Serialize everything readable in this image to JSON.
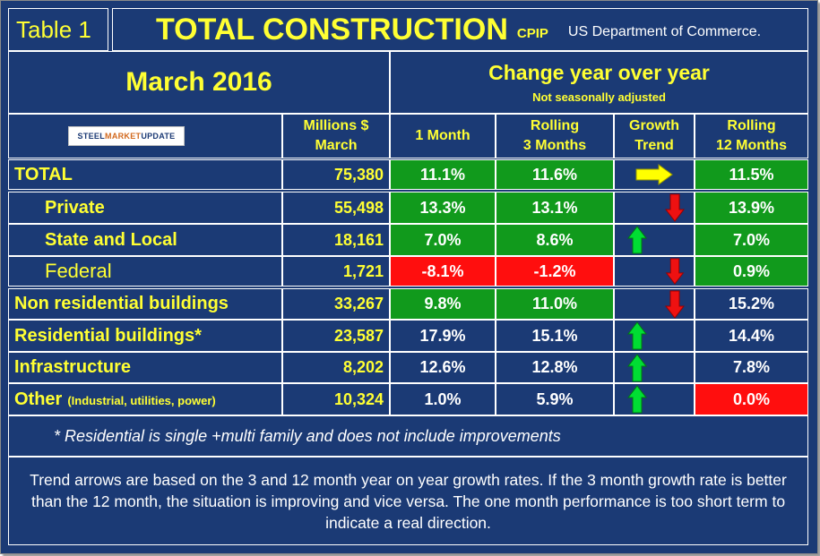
{
  "header": {
    "table_label": "Table 1",
    "title": "TOTAL CONSTRUCTION",
    "title_suffix": "CPIP",
    "source": "US Department of Commerce."
  },
  "subheader": {
    "period": "March 2016",
    "change_title": "Change year over year",
    "change_subtitle": "Not seasonally adjusted"
  },
  "logo_text": {
    "part1": "STEEL ",
    "part2": "MARKET",
    "part3": " UPDATE"
  },
  "columns": {
    "millions": "Millions $",
    "millions_sub": "March",
    "one_month": "1 Month",
    "rolling3": "Rolling",
    "rolling3_sub": "3 Months",
    "growth": "Growth",
    "growth_sub": "Trend",
    "rolling12": "Rolling",
    "rolling12_sub": "12 Months"
  },
  "rows": [
    {
      "label": "TOTAL",
      "millions": "75,380",
      "one_month": "11.1%",
      "rolling3": "11.6%",
      "trend": "right",
      "rolling12": "11.5%"
    },
    {
      "label": "Private",
      "millions": "55,498",
      "one_month": "13.3%",
      "rolling3": "13.1%",
      "trend": "down",
      "rolling12": "13.9%"
    },
    {
      "label": "State and Local",
      "millions": "18,161",
      "one_month": "7.0%",
      "rolling3": "8.6%",
      "trend": "up",
      "rolling12": "7.0%"
    },
    {
      "label": "Federal",
      "millions": "1,721",
      "one_month": "-8.1%",
      "rolling3": "-1.2%",
      "trend": "down",
      "rolling12": "0.9%"
    },
    {
      "label": "Non residential buildings",
      "millions": "33,267",
      "one_month": "9.8%",
      "rolling3": "11.0%",
      "trend": "down",
      "rolling12": "15.2%"
    },
    {
      "label": "Residential buildings*",
      "millions": "23,587",
      "one_month": "17.9%",
      "rolling3": "15.1%",
      "trend": "up",
      "rolling12": "14.4%"
    },
    {
      "label": "Infrastructure",
      "millions": "8,202",
      "one_month": "12.6%",
      "rolling3": "12.8%",
      "trend": "up",
      "rolling12": "7.8%"
    },
    {
      "label": "Other",
      "label_note": "(Industrial, utilities, power)",
      "millions": "10,324",
      "one_month": "1.0%",
      "rolling3": "5.9%",
      "trend": "up",
      "rolling12": "0.0%"
    }
  ],
  "footnote": "* Residential is single +multi family and does not include improvements",
  "explanation": "Trend arrows are based on the 3 and 12 month year on year growth rates. If the 3 month growth rate is better than the 12 month, the situation is improving and vice versa. The one month performance is too short term to indicate a real direction.",
  "colors": {
    "background": "#1b3a75",
    "label_yellow": "#ffff33",
    "positive_green": "#119a1c",
    "negative_red": "#ff0e0e",
    "arrow_up_green": "#00dd33",
    "arrow_down_red": "#ee1111",
    "arrow_right_yellow": "#ffff00"
  }
}
